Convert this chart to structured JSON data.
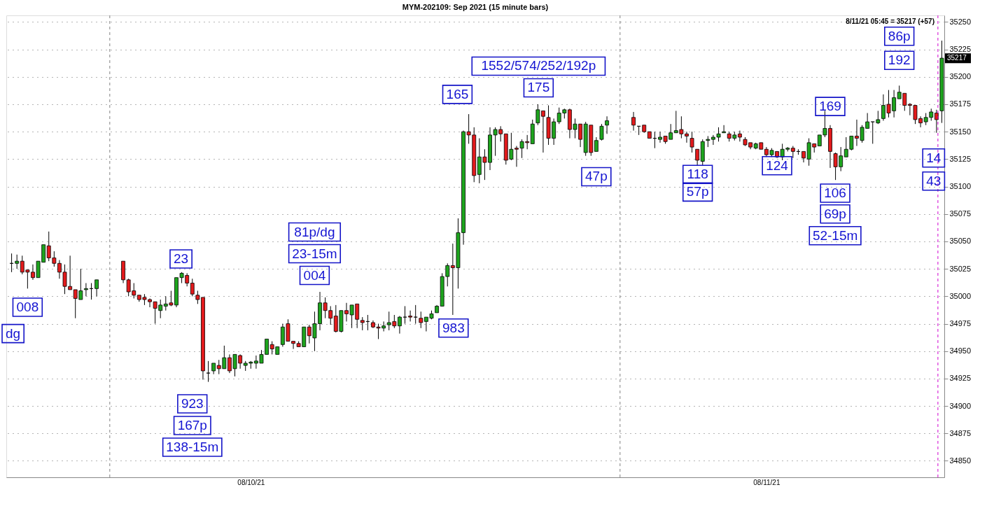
{
  "chart_data": {
    "type": "candlestick",
    "title": "MYM-202109:  Sep 2021  (15 minute bars)",
    "x": [
      "2021-08-09T10:00",
      "2021-08-09T10:15",
      "2021-08-09T10:30",
      "2021-08-09T10:45",
      "2021-08-09T11:00",
      "2021-08-09T11:15",
      "2021-08-09T11:30",
      "2021-08-09T11:45",
      "2021-08-09T12:00",
      "2021-08-09T12:15",
      "2021-08-09T12:30",
      "2021-08-09T12:45",
      "2021-08-09T13:00",
      "2021-08-09T13:15",
      "2021-08-09T13:30",
      "2021-08-09T13:45",
      "2021-08-09T14:00",
      "2021-08-09T15:15",
      "2021-08-09T15:30",
      "2021-08-09T15:45",
      "2021-08-09T16:00",
      "2021-08-09T16:15",
      "2021-08-09T16:30",
      "2021-08-09T16:45",
      "2021-08-09T17:00",
      "2021-08-09T17:15",
      "2021-08-09T17:30",
      "2021-08-09T17:45",
      "2021-08-09T18:00",
      "2021-08-09T18:15",
      "2021-08-09T18:30",
      "2021-08-09T18:45",
      "2021-08-09T19:00",
      "2021-08-09T19:15",
      "2021-08-09T19:30",
      "2021-08-09T19:45",
      "2021-08-09T20:00",
      "2021-08-09T20:15",
      "2021-08-09T20:30",
      "2021-08-09T20:45",
      "2021-08-09T21:00",
      "2021-08-09T21:15",
      "2021-08-09T21:30",
      "2021-08-09T21:45",
      "2021-08-09T22:00",
      "2021-08-09T22:15",
      "2021-08-09T22:30",
      "2021-08-09T22:45",
      "2021-08-09T23:00",
      "2021-08-09T23:15",
      "2021-08-09T23:30",
      "2021-08-09T23:45",
      "2021-08-10T00:00",
      "2021-08-10T00:15",
      "2021-08-10T00:30",
      "2021-08-10T00:45",
      "2021-08-10T01:00",
      "2021-08-10T01:15",
      "2021-08-10T01:30",
      "2021-08-10T01:45",
      "2021-08-10T02:00",
      "2021-08-10T02:15",
      "2021-08-10T02:30",
      "2021-08-10T02:45",
      "2021-08-10T03:00",
      "2021-08-10T03:15",
      "2021-08-10T03:30",
      "2021-08-10T03:45",
      "2021-08-10T04:00",
      "2021-08-10T04:15",
      "2021-08-10T04:30",
      "2021-08-10T04:45",
      "2021-08-10T05:00",
      "2021-08-10T05:15",
      "2021-08-10T05:30",
      "2021-08-10T05:45",
      "2021-08-10T06:00",
      "2021-08-10T06:15",
      "2021-08-10T06:30",
      "2021-08-10T06:45",
      "2021-08-10T07:00",
      "2021-08-10T07:15",
      "2021-08-10T07:30",
      "2021-08-10T07:45",
      "2021-08-10T08:00",
      "2021-08-10T08:15",
      "2021-08-10T08:30",
      "2021-08-10T08:45",
      "2021-08-10T09:00",
      "2021-08-10T09:15",
      "2021-08-10T09:30",
      "2021-08-10T09:45",
      "2021-08-10T10:00",
      "2021-08-10T10:15",
      "2021-08-10T10:30",
      "2021-08-10T10:45",
      "2021-08-10T11:00",
      "2021-08-10T11:15",
      "2021-08-10T11:30",
      "2021-08-10T11:45",
      "2021-08-10T12:00",
      "2021-08-10T12:15",
      "2021-08-10T12:30",
      "2021-08-10T12:45",
      "2021-08-10T13:00",
      "2021-08-10T13:15",
      "2021-08-10T13:30",
      "2021-08-10T13:45",
      "2021-08-10T14:00",
      "2021-08-10T15:15",
      "2021-08-10T15:30",
      "2021-08-10T15:45",
      "2021-08-10T16:00",
      "2021-08-10T16:15",
      "2021-08-10T16:30",
      "2021-08-10T16:45",
      "2021-08-10T17:00",
      "2021-08-10T17:15",
      "2021-08-10T17:30",
      "2021-08-10T17:45",
      "2021-08-10T18:00",
      "2021-08-10T18:15",
      "2021-08-10T18:30",
      "2021-08-10T18:45",
      "2021-08-10T19:00",
      "2021-08-10T19:15",
      "2021-08-10T19:30",
      "2021-08-10T19:45",
      "2021-08-10T20:00",
      "2021-08-10T20:15",
      "2021-08-10T20:30",
      "2021-08-10T20:45",
      "2021-08-10T21:00",
      "2021-08-10T21:15",
      "2021-08-10T21:30",
      "2021-08-10T21:45",
      "2021-08-10T22:00",
      "2021-08-10T22:15",
      "2021-08-10T22:30",
      "2021-08-10T22:45",
      "2021-08-10T23:00",
      "2021-08-10T23:15",
      "2021-08-10T23:30",
      "2021-08-10T23:45",
      "2021-08-11T00:00",
      "2021-08-11T00:15",
      "2021-08-11T00:30",
      "2021-08-11T00:45",
      "2021-08-11T01:00",
      "2021-08-11T01:15",
      "2021-08-11T01:30",
      "2021-08-11T01:45",
      "2021-08-11T02:00",
      "2021-08-11T02:15",
      "2021-08-11T02:30",
      "2021-08-11T02:45",
      "2021-08-11T03:00",
      "2021-08-11T03:15",
      "2021-08-11T03:30",
      "2021-08-11T03:45",
      "2021-08-11T04:00",
      "2021-08-11T04:15",
      "2021-08-11T04:30",
      "2021-08-11T04:45",
      "2021-08-11T05:00",
      "2021-08-11T05:15",
      "2021-08-11T05:30",
      "2021-08-11T05:45"
    ],
    "ohlc": [
      [
        35030,
        35039,
        35022,
        35030
      ],
      [
        35030,
        35038,
        35025,
        35032
      ],
      [
        35032,
        35037,
        35020,
        35022
      ],
      [
        35024,
        35024,
        35007,
        35022
      ],
      [
        35022,
        35029,
        35015,
        35017
      ],
      [
        35017,
        35032,
        35017,
        35032
      ],
      [
        35031,
        35047,
        35031,
        35047
      ],
      [
        35046,
        35059,
        35032,
        35035
      ],
      [
        35035,
        35041,
        35027,
        35030
      ],
      [
        35030,
        35033,
        35016,
        35022
      ],
      [
        35022,
        35029,
        35002,
        35009
      ],
      [
        35009,
        35037,
        35006,
        35006
      ],
      [
        35006,
        35006,
        34980,
        34998
      ],
      [
        34997,
        35025,
        34997,
        35005
      ],
      [
        35006,
        35012,
        35000,
        35007
      ],
      [
        35007,
        35012,
        34997,
        35007
      ],
      [
        35007,
        35015,
        35000,
        35015
      ],
      [
        35032,
        35032,
        35012,
        35015
      ],
      [
        35015,
        35016,
        35000,
        35004
      ],
      [
        35005,
        35012,
        34998,
        35001
      ],
      [
        35001,
        35001,
        34995,
        34997
      ],
      [
        34999,
        35002,
        34992,
        34997
      ],
      [
        34997,
        34998,
        34990,
        34995
      ],
      [
        34995,
        34995,
        34975,
        34989
      ],
      [
        34987,
        34997,
        34980,
        34992
      ],
      [
        34991,
        35000,
        34987,
        34993
      ],
      [
        34994,
        35005,
        34991,
        34992
      ],
      [
        34992,
        35017,
        34990,
        35017
      ],
      [
        35017,
        35022,
        35012,
        35021
      ],
      [
        35019,
        35021,
        35009,
        35012
      ],
      [
        35012,
        35016,
        35000,
        35002
      ],
      [
        35001,
        35005,
        34993,
        34997
      ],
      [
        34999,
        34999,
        34924,
        34932
      ],
      [
        34930,
        34941,
        34922,
        34930
      ],
      [
        34932,
        34939,
        34929,
        34939
      ],
      [
        34937,
        34942,
        34929,
        34934
      ],
      [
        34934,
        34955,
        34934,
        34944
      ],
      [
        34944,
        34947,
        34930,
        34932
      ],
      [
        34934,
        34947,
        34927,
        34947
      ],
      [
        34946,
        34947,
        34934,
        34939
      ],
      [
        34937,
        34941,
        34932,
        34939
      ],
      [
        34939,
        34941,
        34934,
        34940
      ],
      [
        34939,
        34946,
        34934,
        34941
      ],
      [
        34939,
        34951,
        34939,
        34947
      ],
      [
        34947,
        34961,
        34947,
        34961
      ],
      [
        34956,
        34959,
        34947,
        34952
      ],
      [
        34947,
        34954,
        34947,
        34954
      ],
      [
        34956,
        34975,
        34954,
        34972
      ],
      [
        34975,
        34979,
        34959,
        34959
      ],
      [
        34959,
        34959,
        34952,
        34957
      ],
      [
        34957,
        34959,
        34954,
        34954
      ],
      [
        34954,
        34972,
        34954,
        34972
      ],
      [
        34972,
        34974,
        34957,
        34964
      ],
      [
        34962,
        34986,
        34950,
        34975
      ],
      [
        34975,
        35004,
        34969,
        34994
      ],
      [
        34994,
        34999,
        34980,
        34987
      ],
      [
        34987,
        34991,
        34974,
        34980
      ],
      [
        34982,
        34992,
        34967,
        34968
      ],
      [
        34968,
        34987,
        34967,
        34987
      ],
      [
        34987,
        34994,
        34977,
        34984
      ],
      [
        34983,
        34992,
        34971,
        34992
      ],
      [
        34993,
        34993,
        34971,
        34979
      ],
      [
        34978,
        34981,
        34969,
        34976
      ],
      [
        34977,
        34983,
        34969,
        34977
      ],
      [
        34976,
        34978,
        34971,
        34972
      ],
      [
        34972,
        34975,
        34961,
        34971
      ],
      [
        34971,
        34977,
        34968,
        34973
      ],
      [
        34974,
        34986,
        34969,
        34976
      ],
      [
        34977,
        34983,
        34971,
        34973
      ],
      [
        34973,
        34982,
        34966,
        34981
      ],
      [
        34981,
        34991,
        34975,
        34981
      ],
      [
        34982,
        34987,
        34977,
        34981
      ],
      [
        34981,
        34992,
        34975,
        34981
      ],
      [
        34980,
        34986,
        34971,
        34976
      ],
      [
        34977,
        34981,
        34968,
        34981
      ],
      [
        34980,
        34987,
        34979,
        34984
      ],
      [
        34985,
        34992,
        34985,
        34991
      ],
      [
        34991,
        35021,
        34991,
        35018
      ],
      [
        35018,
        35030,
        35009,
        35028
      ],
      [
        35028,
        35048,
        34983,
        35026
      ],
      [
        35026,
        35071,
        35007,
        35058
      ],
      [
        35058,
        35151,
        35047,
        35150
      ],
      [
        35150,
        35166,
        35139,
        35147
      ],
      [
        35147,
        35154,
        35104,
        35110
      ],
      [
        35111,
        35144,
        35103,
        35127
      ],
      [
        35127,
        35134,
        35106,
        35122
      ],
      [
        35122,
        35154,
        35115,
        35147
      ],
      [
        35147,
        35154,
        35128,
        35152
      ],
      [
        35152,
        35155,
        35141,
        35148
      ],
      [
        35148,
        35148,
        35120,
        35124
      ],
      [
        35125,
        35149,
        35124,
        35134
      ],
      [
        35135,
        35137,
        35118,
        35134
      ],
      [
        35135,
        35143,
        35126,
        35141
      ],
      [
        35141,
        35147,
        35134,
        35140
      ],
      [
        35139,
        35161,
        35139,
        35157
      ],
      [
        35158,
        35175,
        35156,
        35170
      ],
      [
        35169,
        35169,
        35131,
        35164
      ],
      [
        35163,
        35174,
        35138,
        35144
      ],
      [
        35144,
        35162,
        35138,
        35159
      ],
      [
        35159,
        35172,
        35157,
        35167
      ],
      [
        35167,
        35171,
        35162,
        35170
      ],
      [
        35170,
        35171,
        35144,
        35152
      ],
      [
        35152,
        35162,
        35144,
        35157
      ],
      [
        35157,
        35157,
        35136,
        35143
      ],
      [
        35131,
        35159,
        35128,
        35157
      ],
      [
        35156,
        35156,
        35128,
        35131
      ],
      [
        35132,
        35145,
        35132,
        35142
      ],
      [
        35143,
        35157,
        35142,
        35155
      ],
      [
        35156,
        35164,
        35148,
        35160
      ],
      [
        35163,
        35168,
        35151,
        35156
      ],
      [
        35155,
        35155,
        35147,
        35155
      ],
      [
        35156,
        35156,
        35149,
        35150
      ],
      [
        35150,
        35150,
        35144,
        35144
      ],
      [
        35144,
        35150,
        35135,
        35144
      ],
      [
        35143,
        35150,
        35140,
        35145
      ],
      [
        35146,
        35146,
        35139,
        35141
      ],
      [
        35143,
        35157,
        35143,
        35149
      ],
      [
        35149,
        35169,
        35149,
        35151
      ],
      [
        35152,
        35164,
        35144,
        35148
      ],
      [
        35148,
        35150,
        35140,
        35146
      ],
      [
        35144,
        35150,
        35131,
        35136
      ],
      [
        35134,
        35134,
        35119,
        35124
      ],
      [
        35123,
        35143,
        35119,
        35141
      ],
      [
        35142,
        35146,
        35136,
        35143
      ],
      [
        35143,
        35147,
        35138,
        35145
      ],
      [
        35145,
        35154,
        35141,
        35148
      ],
      [
        35149,
        35156,
        35149,
        35150
      ],
      [
        35148,
        35150,
        35141,
        35144
      ],
      [
        35144,
        35150,
        35142,
        35147
      ],
      [
        35148,
        35151,
        35141,
        35145
      ],
      [
        35143,
        35145,
        35137,
        35138
      ],
      [
        35140,
        35140,
        35134,
        35136
      ],
      [
        35135,
        35140,
        35134,
        35139
      ],
      [
        35140,
        35140,
        35134,
        35134
      ],
      [
        35134,
        35136,
        35127,
        35129
      ],
      [
        35129,
        35135,
        35127,
        35133
      ],
      [
        35132,
        35132,
        35126,
        35127
      ],
      [
        35127,
        35139,
        35124,
        35134
      ],
      [
        35134,
        35136,
        35132,
        35135
      ],
      [
        35135,
        35137,
        35126,
        35132
      ],
      [
        35132,
        35134,
        35129,
        35132
      ],
      [
        35132,
        35132,
        35122,
        35126
      ],
      [
        35125,
        35144,
        35119,
        35140
      ],
      [
        35139,
        35139,
        35131,
        35136
      ],
      [
        35137,
        35147,
        35137,
        35147
      ],
      [
        35147,
        35169,
        35145,
        35153
      ],
      [
        35153,
        35156,
        35117,
        35132
      ],
      [
        35130,
        35131,
        35106,
        35118
      ],
      [
        35118,
        35136,
        35114,
        35128
      ],
      [
        35127,
        35145,
        35127,
        35134
      ],
      [
        35134,
        35146,
        35133,
        35146
      ],
      [
        35146,
        35161,
        35137,
        35144
      ],
      [
        35142,
        35156,
        35140,
        35154
      ],
      [
        35153,
        35167,
        35153,
        35159
      ],
      [
        35159,
        35159,
        35139,
        35159
      ],
      [
        35158,
        35169,
        35157,
        35161
      ],
      [
        35162,
        35184,
        35160,
        35174
      ],
      [
        35175,
        35188,
        35163,
        35167
      ],
      [
        35169,
        35188,
        35163,
        35181
      ],
      [
        35180,
        35192,
        35180,
        35186
      ],
      [
        35185,
        35185,
        35169,
        35174
      ],
      [
        35175,
        35176,
        35165,
        35174
      ],
      [
        35174,
        35174,
        35157,
        35161
      ],
      [
        35162,
        35164,
        35154,
        35158
      ],
      [
        35159,
        35167,
        35156,
        35163
      ],
      [
        35163,
        35171,
        35160,
        35168
      ],
      [
        35167,
        35170,
        35149,
        35161
      ],
      [
        35169,
        35233,
        35158,
        35217
      ]
    ],
    "colors": [
      "#000000",
      "#1ea51e",
      "#e31a1c",
      "#e31a1c",
      "#e31a1c",
      "#1ea51e",
      "#1ea51e",
      "#e31a1c",
      "#e31a1c",
      "#e31a1c",
      "#e31a1c",
      "#e31a1c",
      "#e31a1c",
      "#1ea51e",
      "#1ea51e",
      "#000000",
      "#1ea51e",
      "#e31a1c",
      "#e31a1c",
      "#e31a1c",
      "#e31a1c",
      "#e31a1c",
      "#e31a1c",
      "#e31a1c",
      "#1ea51e",
      "#1ea51e",
      "#e31a1c",
      "#1ea51e",
      "#1ea51e",
      "#e31a1c",
      "#e31a1c",
      "#e31a1c",
      "#e31a1c",
      "#000000",
      "#1ea51e",
      "#e31a1c",
      "#1ea51e",
      "#e31a1c",
      "#1ea51e",
      "#e31a1c",
      "#1ea51e",
      "#1ea51e",
      "#1ea51e",
      "#1ea51e",
      "#1ea51e",
      "#e31a1c",
      "#1ea51e",
      "#1ea51e",
      "#e31a1c",
      "#e31a1c",
      "#e31a1c",
      "#1ea51e",
      "#e31a1c",
      "#1ea51e",
      "#1ea51e",
      "#e31a1c",
      "#e31a1c",
      "#e31a1c",
      "#1ea51e",
      "#e31a1c",
      "#1ea51e",
      "#e31a1c",
      "#e31a1c",
      "#000000",
      "#e31a1c",
      "#e31a1c",
      "#1ea51e",
      "#1ea51e",
      "#e31a1c",
      "#1ea51e",
      "#000000",
      "#e31a1c",
      "#000000",
      "#e31a1c",
      "#1ea51e",
      "#1ea51e",
      "#1ea51e",
      "#1ea51e",
      "#1ea51e",
      "#e31a1c",
      "#1ea51e",
      "#1ea51e",
      "#e31a1c",
      "#e31a1c",
      "#1ea51e",
      "#e31a1c",
      "#1ea51e",
      "#1ea51e",
      "#e31a1c",
      "#e31a1c",
      "#1ea51e",
      "#e31a1c",
      "#1ea51e",
      "#e31a1c",
      "#1ea51e",
      "#1ea51e",
      "#e31a1c",
      "#e31a1c",
      "#1ea51e",
      "#1ea51e",
      "#1ea51e",
      "#e31a1c",
      "#1ea51e",
      "#e31a1c",
      "#1ea51e",
      "#e31a1c",
      "#1ea51e",
      "#1ea51e",
      "#1ea51e",
      "#e31a1c",
      "#000000",
      "#e31a1c",
      "#e31a1c",
      "#000000",
      "#1ea51e",
      "#e31a1c",
      "#1ea51e",
      "#1ea51e",
      "#e31a1c",
      "#e31a1c",
      "#e31a1c",
      "#e31a1c",
      "#1ea51e",
      "#1ea51e",
      "#1ea51e",
      "#1ea51e",
      "#1ea51e",
      "#e31a1c",
      "#1ea51e",
      "#e31a1c",
      "#e31a1c",
      "#e31a1c",
      "#1ea51e",
      "#e31a1c",
      "#e31a1c",
      "#1ea51e",
      "#e31a1c",
      "#1ea51e",
      "#1ea51e",
      "#e31a1c",
      "#000000",
      "#e31a1c",
      "#1ea51e",
      "#e31a1c",
      "#1ea51e",
      "#1ea51e",
      "#e31a1c",
      "#e31a1c",
      "#1ea51e",
      "#1ea51e",
      "#1ea51e",
      "#e31a1c",
      "#1ea51e",
      "#1ea51e",
      "#000000",
      "#1ea51e",
      "#1ea51e",
      "#e31a1c",
      "#1ea51e",
      "#1ea51e",
      "#e31a1c",
      "#e31a1c",
      "#e31a1c",
      "#e31a1c",
      "#1ea51e",
      "#1ea51e",
      "#e31a1c",
      "#1ea51e"
    ],
    "xlim": [
      "2021-08-09T09:45",
      "2021-08-11T05:52"
    ],
    "xticks": [
      {
        "value": "2021-08-09T21:15",
        "label": "08/10/21"
      },
      {
        "value": "2021-08-10T21:30",
        "label": "08/11/21"
      }
    ],
    "ylim": [
      34835,
      35256
    ],
    "yticks": [
      34850,
      34875,
      34900,
      34925,
      34950,
      34975,
      35000,
      35025,
      35050,
      35075,
      35100,
      35125,
      35150,
      35175,
      35200,
      35225,
      35250
    ],
    "grid": "y",
    "ref_lines": [
      {
        "axis": "x",
        "value": "2021-08-09T14:37",
        "color": "#808080",
        "line_style": "dashed"
      },
      {
        "axis": "x",
        "value": "2021-08-10T14:37",
        "color": "#808080",
        "line_style": "dashed"
      },
      {
        "axis": "x",
        "value": "2021-08-11T05:34",
        "color": "#d000d0",
        "line_style": "dashed"
      }
    ],
    "annotations": [
      "8/11/21 05:45 = 35217 (+57)",
      {
        "text": "35217",
        "y": 35217
      },
      {
        "text": "008",
        "x": "2021-08-09T10:45",
        "y": 34990
      },
      {
        "text": "dg",
        "x": "2021-08-09T10:04",
        "y": 34966
      },
      {
        "text": "23",
        "x": "2021-08-09T17:58",
        "y": 35034
      },
      {
        "text": "923",
        "x": "2021-08-09T18:30",
        "y": 34902
      },
      "167p",
      "138-15m",
      {
        "text": "004",
        "x": "2021-08-10T00:15",
        "y": 35019
      },
      "23-15m",
      "81p/dg",
      {
        "text": "983",
        "x": "2021-08-10T06:47",
        "y": 34971
      },
      {
        "text": "165",
        "x": "2021-08-10T06:58",
        "y": 35184
      },
      {
        "text": "175",
        "x": "2021-08-10T10:47",
        "y": 35190
      },
      "1552/574/252/192p",
      {
        "text": "47p",
        "x": "2021-08-10T13:30",
        "y": 35109
      },
      {
        "text": "118",
        "x": "2021-08-10T18:16",
        "y": 35111
      },
      {
        "text": "57p",
        "x": "2021-08-10T18:16",
        "y": 35095
      },
      {
        "text": "124",
        "x": "2021-08-10T22:00",
        "y": 35119
      },
      {
        "text": "169",
        "x": "2021-08-11T00:30",
        "y": 35173
      },
      {
        "text": "106",
        "x": "2021-08-11T00:44",
        "y": 35094
      },
      {
        "text": "69p",
        "x": "2021-08-11T00:44",
        "y": 35075
      },
      "52-15m",
      {
        "text": "192",
        "x": "2021-08-11T03:45",
        "y": 35215
      },
      {
        "text": "86p",
        "x": "2021-08-11T03:45",
        "y": 35237
      },
      {
        "text": "14",
        "x": "2021-08-11T05:22",
        "y": 35126
      },
      {
        "text": "43",
        "x": "2021-08-11T05:22",
        "y": 35105
      }
    ]
  }
}
